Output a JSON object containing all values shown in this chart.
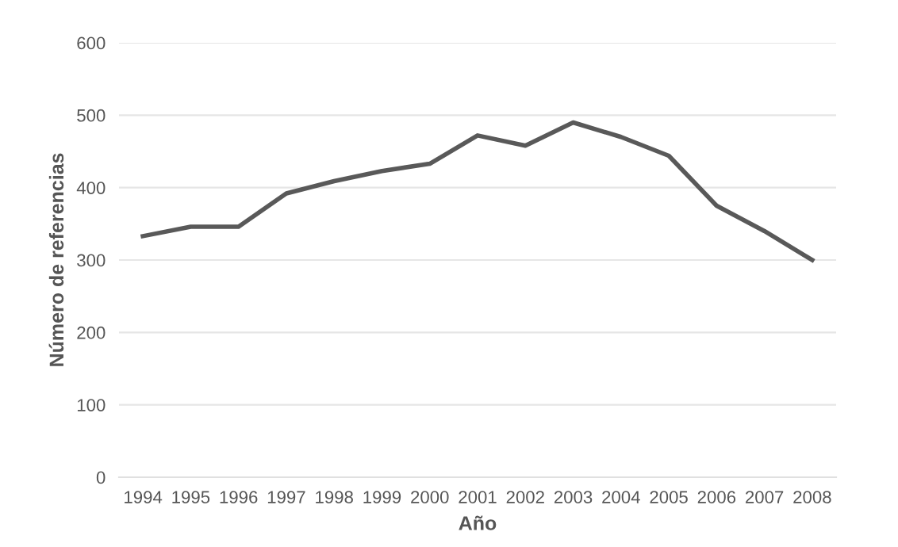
{
  "chart_data": {
    "type": "line",
    "xlabel": "Año",
    "ylabel": "Número de referencias",
    "categories": [
      "1994",
      "1995",
      "1996",
      "1997",
      "1998",
      "1999",
      "2000",
      "2001",
      "2002",
      "2003",
      "2004",
      "2005",
      "2006",
      "2007",
      "2008"
    ],
    "series": [
      {
        "color": "#595959",
        "values": [
          333,
          346,
          346,
          392,
          409,
          423,
          433,
          472,
          458,
          490,
          470,
          444,
          375,
          340,
          300
        ]
      }
    ],
    "ylim": [
      0,
      600
    ],
    "yticks": [
      0,
      100,
      200,
      300,
      400,
      500,
      600
    ],
    "grid": "y",
    "legend": false,
    "marker": "none",
    "line_style": "solid"
  }
}
